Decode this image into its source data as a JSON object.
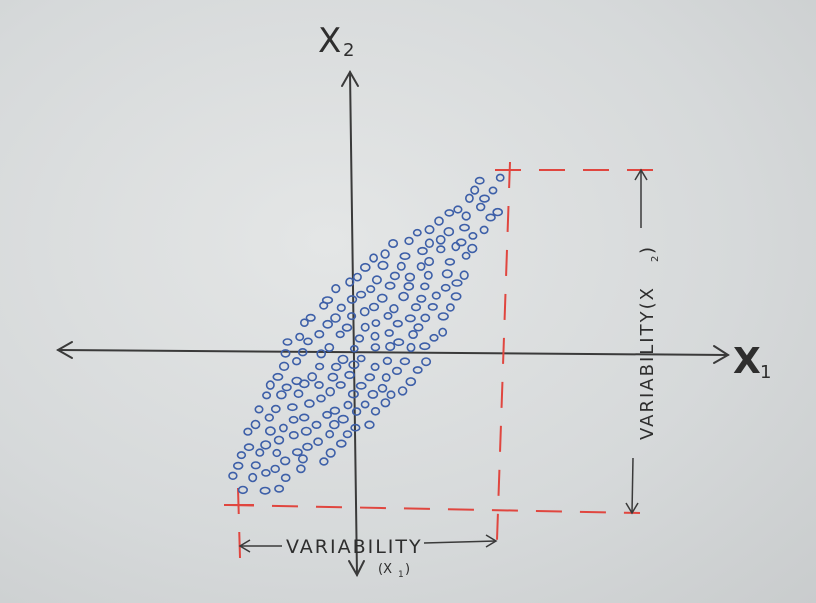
{
  "axes": {
    "x_label": "X",
    "x_sub": "1",
    "y_label": "X",
    "y_sub": "2"
  },
  "variability_x": {
    "label": "VARIABILITY",
    "sub": "(X",
    "sub_index": "1",
    "close": ")"
  },
  "variability_y": {
    "label": "VARIABILITY(X",
    "sub_index": "2",
    "close": ")"
  },
  "colors": {
    "points": "#3d5fa8",
    "dashes": "#e0463f",
    "ink": "#3a3a3a"
  }
}
